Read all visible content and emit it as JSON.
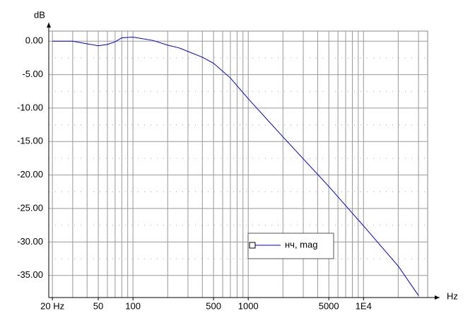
{
  "chart_data": {
    "type": "line",
    "x_label": "Hz",
    "y_label": "dB",
    "x": [
      20,
      30,
      40,
      50,
      60,
      70,
      80,
      100,
      150,
      200,
      250,
      400,
      500,
      700,
      1000,
      2000,
      5000,
      10000,
      20000,
      30000
    ],
    "series": [
      {
        "name": "нч, mag",
        "color": "#0000cc",
        "values": [
          0.0,
          0.0,
          -0.4,
          -0.7,
          -0.5,
          -0.1,
          0.5,
          0.6,
          0.1,
          -0.6,
          -1.0,
          -2.4,
          -3.3,
          -5.5,
          -8.6,
          -14.3,
          -21.7,
          -27.6,
          -33.6,
          -38.0
        ]
      }
    ],
    "xlim": [
      18.6,
      36000
    ],
    "log_x": true,
    "xticks": [
      {
        "value": 20,
        "label": "20 Hz"
      },
      50,
      100,
      500,
      1000,
      5000,
      {
        "value": 10000,
        "label": "1E4"
      }
    ],
    "xgrid": [
      20,
      30,
      40,
      50,
      60,
      70,
      80,
      90,
      100,
      200,
      300,
      400,
      500,
      600,
      700,
      800,
      900,
      1000,
      2000,
      3000,
      4000,
      5000,
      6000,
      7000,
      8000,
      9000,
      10000,
      20000,
      30000
    ],
    "ylim": [
      -38.3,
      1.5
    ],
    "yticks": [
      {
        "value": 0,
        "label": "0.00"
      },
      {
        "value": -5,
        "label": "-5.00"
      },
      {
        "value": -10,
        "label": "-10.00"
      },
      {
        "value": -15,
        "label": "-15.00"
      },
      {
        "value": -20,
        "label": "-20.00"
      },
      {
        "value": -25,
        "label": "-25.00"
      },
      {
        "value": -30,
        "label": "-30.00"
      },
      {
        "value": -35,
        "label": "-35.00"
      }
    ],
    "grid": true
  }
}
